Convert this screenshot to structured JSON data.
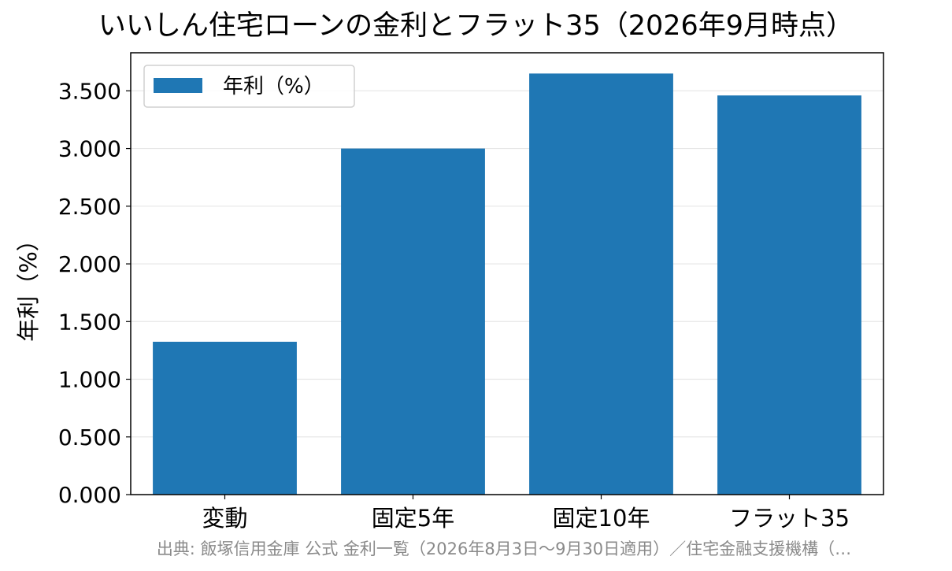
{
  "chart_data": {
    "type": "bar",
    "title": "いいしん住宅ローンの金利とフラット35（2026年9月時点）",
    "categories": [
      "変動",
      "固定5年",
      "固定10年",
      "フラット35"
    ],
    "series": [
      {
        "name": "年利（%）",
        "values": [
          1.325,
          3.0,
          3.65,
          3.46
        ],
        "color": "#1f77b4"
      }
    ],
    "xlabel": "",
    "ylabel": "年利（%）",
    "ylim": [
      0,
      3.83
    ],
    "yticks": [
      0,
      0.5,
      1.0,
      1.5,
      2.0,
      2.5,
      3.0,
      3.5
    ],
    "ytick_labels": [
      "0.000",
      "0.500",
      "1.000",
      "1.500",
      "2.000",
      "2.500",
      "3.000",
      "3.500"
    ],
    "grid": "horizontal",
    "legend_position": "top-left",
    "source_note": "出典: 飯塚信用金庫 公式 金利一覧（2026年8月3日〜9月30日適用）／住宅金融支援機構（…"
  }
}
